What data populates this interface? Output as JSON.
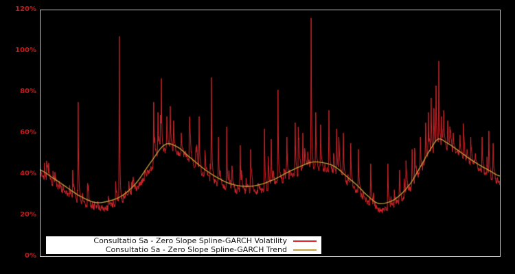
{
  "figure": {
    "background": "#000000",
    "plot_border_color": "#c9c9c9"
  },
  "chart_data": {
    "type": "line",
    "title": "",
    "xlabel": "",
    "ylabel": "",
    "grid": false,
    "ylim": [
      0,
      120
    ],
    "x_tick_labels": [],
    "y_ticks": [
      {
        "label": "0%",
        "value": 0
      },
      {
        "label": "20%",
        "value": 20
      },
      {
        "label": "40%",
        "value": 40
      },
      {
        "label": "60%",
        "value": 60
      },
      {
        "label": "80%",
        "value": 80
      },
      {
        "label": "100%",
        "value": 100
      },
      {
        "label": "120%",
        "value": 120
      }
    ],
    "tick_label_color": "#cd1719",
    "legend_position": "bottom-center-inside",
    "legend_background": "#ffffff",
    "series": [
      {
        "name": "Consultatio Sa - Zero Slope Spline-GARCH Volatility",
        "color": "#d8262b",
        "style": "spiky-line"
      },
      {
        "name": "Consultatio Sa - Zero Slope Spline-GARCH Trend",
        "color": "#c09f3c",
        "style": "smooth-line"
      }
    ],
    "trend_keypoints": [
      [
        0.0,
        42.0
      ],
      [
        0.0254,
        38.5
      ],
      [
        0.0552,
        34.0
      ],
      [
        0.0851,
        29.5
      ],
      [
        0.1194,
        26.2
      ],
      [
        0.1493,
        26.8
      ],
      [
        0.1791,
        29.5
      ],
      [
        0.209,
        35.5
      ],
      [
        0.2388,
        45.0
      ],
      [
        0.2716,
        54.2
      ],
      [
        0.2985,
        53.2
      ],
      [
        0.3239,
        48.5
      ],
      [
        0.3537,
        43.0
      ],
      [
        0.3836,
        38.5
      ],
      [
        0.4134,
        35.3
      ],
      [
        0.4463,
        34.0
      ],
      [
        0.4776,
        34.8
      ],
      [
        0.5104,
        37.5
      ],
      [
        0.5403,
        41.0
      ],
      [
        0.5701,
        44.0
      ],
      [
        0.5925,
        45.8
      ],
      [
        0.6179,
        45.4
      ],
      [
        0.6418,
        43.5
      ],
      [
        0.6672,
        38.8
      ],
      [
        0.6896,
        34.5
      ],
      [
        0.7119,
        29.5
      ],
      [
        0.7343,
        25.8
      ],
      [
        0.7567,
        26.2
      ],
      [
        0.7791,
        29.0
      ],
      [
        0.806,
        35.5
      ],
      [
        0.8313,
        45.0
      ],
      [
        0.8507,
        52.5
      ],
      [
        0.8657,
        57.0
      ],
      [
        0.8836,
        55.3
      ],
      [
        0.906,
        52.0
      ],
      [
        0.9284,
        48.3
      ],
      [
        0.9507,
        45.0
      ],
      [
        0.9761,
        41.8
      ],
      [
        1.0,
        39.0
      ]
    ],
    "volatility_model": {
      "seed": 11,
      "points": 1500,
      "base_offset": -3.2,
      "jitter": 1.5,
      "shock_prob": 0.1,
      "shock_mean": 4.5,
      "decay": 0.78,
      "spikes": [
        [
          0.0836,
          75
        ],
        [
          0.1731,
          107
        ],
        [
          0.2478,
          75
        ],
        [
          0.2567,
          70
        ],
        [
          0.2642,
          86.5
        ],
        [
          0.2761,
          68
        ],
        [
          0.2836,
          73
        ],
        [
          0.291,
          66
        ],
        [
          0.3075,
          60
        ],
        [
          0.3463,
          68
        ],
        [
          0.3731,
          87
        ],
        [
          0.3881,
          58
        ],
        [
          0.406,
          63
        ],
        [
          0.4358,
          54
        ],
        [
          0.4582,
          52
        ],
        [
          0.4881,
          62
        ],
        [
          0.503,
          57
        ],
        [
          0.5179,
          81
        ],
        [
          0.5373,
          58
        ],
        [
          0.5552,
          65
        ],
        [
          0.5716,
          60
        ],
        [
          0.5896,
          116
        ],
        [
          0.6,
          70
        ],
        [
          0.6104,
          64
        ],
        [
          0.6284,
          71
        ],
        [
          0.6448,
          62
        ],
        [
          0.6597,
          60
        ],
        [
          0.6761,
          55
        ],
        [
          0.6925,
          52
        ],
        [
          0.7194,
          45
        ],
        [
          0.7567,
          45
        ],
        [
          0.7821,
          42
        ],
        [
          0.809,
          52
        ],
        [
          0.8269,
          58
        ],
        [
          0.8388,
          65
        ],
        [
          0.8448,
          70
        ],
        [
          0.8507,
          77
        ],
        [
          0.8567,
          72
        ],
        [
          0.8612,
          83
        ],
        [
          0.8672,
          95
        ],
        [
          0.8731,
          68
        ],
        [
          0.8776,
          71
        ],
        [
          0.8866,
          66
        ],
        [
          0.8985,
          60
        ],
        [
          0.9134,
          59
        ],
        [
          0.9284,
          52
        ],
        [
          0.9463,
          50
        ],
        [
          0.9612,
          58
        ],
        [
          0.9761,
          61
        ],
        [
          0.9851,
          55
        ]
      ]
    }
  },
  "legend": {
    "entries": [
      {
        "label": "Consultatio Sa - Zero Slope Spline-GARCH Volatility",
        "color": "#d8262b"
      },
      {
        "label": "Consultatio Sa - Zero Slope Spline-GARCH Trend",
        "color": "#c09f3c"
      }
    ]
  }
}
